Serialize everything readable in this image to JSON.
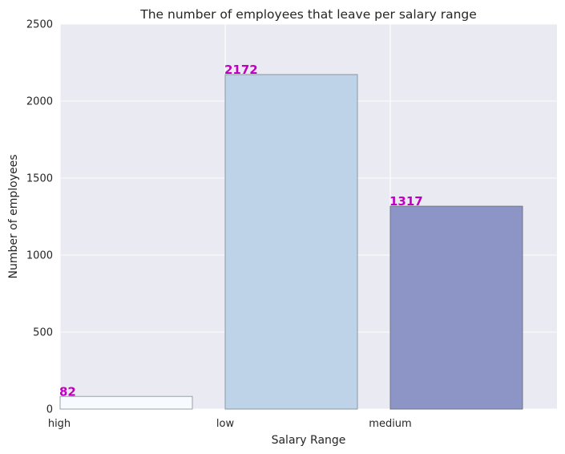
{
  "chart_data": {
    "type": "bar",
    "title": "The number of employees that leave per salary range",
    "xlabel": "Salary Range",
    "ylabel": "Number of employees",
    "categories": [
      "high",
      "low",
      "medium"
    ],
    "values": [
      82,
      2172,
      1317
    ],
    "data_labels": [
      "82",
      "2172",
      "1317"
    ],
    "ylim": [
      0,
      2500
    ],
    "yticks": [
      0,
      500,
      1000,
      1500,
      2000,
      2500
    ],
    "grid": true,
    "colors": {
      "background": "#EAEAF2",
      "grid": "#FFFFFF",
      "bar_fills": [
        "#F7FBFF",
        "#BED3E7",
        "#8C95C6"
      ],
      "bar_edges": [
        "#9AA3A6",
        "#8A97A3",
        "#6F7788"
      ],
      "data_label": "#C000C0"
    }
  }
}
